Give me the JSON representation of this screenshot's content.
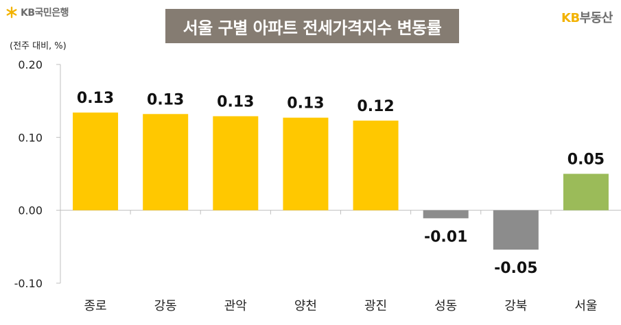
{
  "header": {
    "logo_left": "KB국민은행",
    "title": "서울 구별 아파트 전세가격지수 변동률",
    "logo_right_kb": "KB",
    "logo_right_text": "부동산",
    "unit": "(전주 대비, %)"
  },
  "colors": {
    "positive": "#ffc800",
    "negative": "#8c8c8c",
    "total": "#9bbb59",
    "title_bg": "#857c72"
  },
  "chart_data": {
    "type": "bar",
    "title": "서울 구별 아파트 전세가격지수 변동률",
    "ylabel": "(전주 대비, %)",
    "categories": [
      "종로",
      "강동",
      "관악",
      "양천",
      "광진",
      "성동",
      "강북",
      "서울"
    ],
    "values": [
      0.134,
      0.132,
      0.129,
      0.127,
      0.123,
      -0.011,
      -0.054,
      0.05
    ],
    "data_labels": [
      "0.13",
      "0.13",
      "0.13",
      "0.13",
      "0.12",
      "-0.01",
      "-0.05",
      "0.05"
    ],
    "bar_kinds": [
      "positive",
      "positive",
      "positive",
      "positive",
      "positive",
      "negative",
      "negative",
      "total"
    ],
    "yticks": [
      "0.20",
      "0.10",
      "0.00",
      "-0.10"
    ],
    "ytick_values": [
      0.2,
      0.1,
      0.0,
      -0.1
    ],
    "ylim": [
      -0.1,
      0.2
    ],
    "grid": false,
    "legend": "none"
  }
}
